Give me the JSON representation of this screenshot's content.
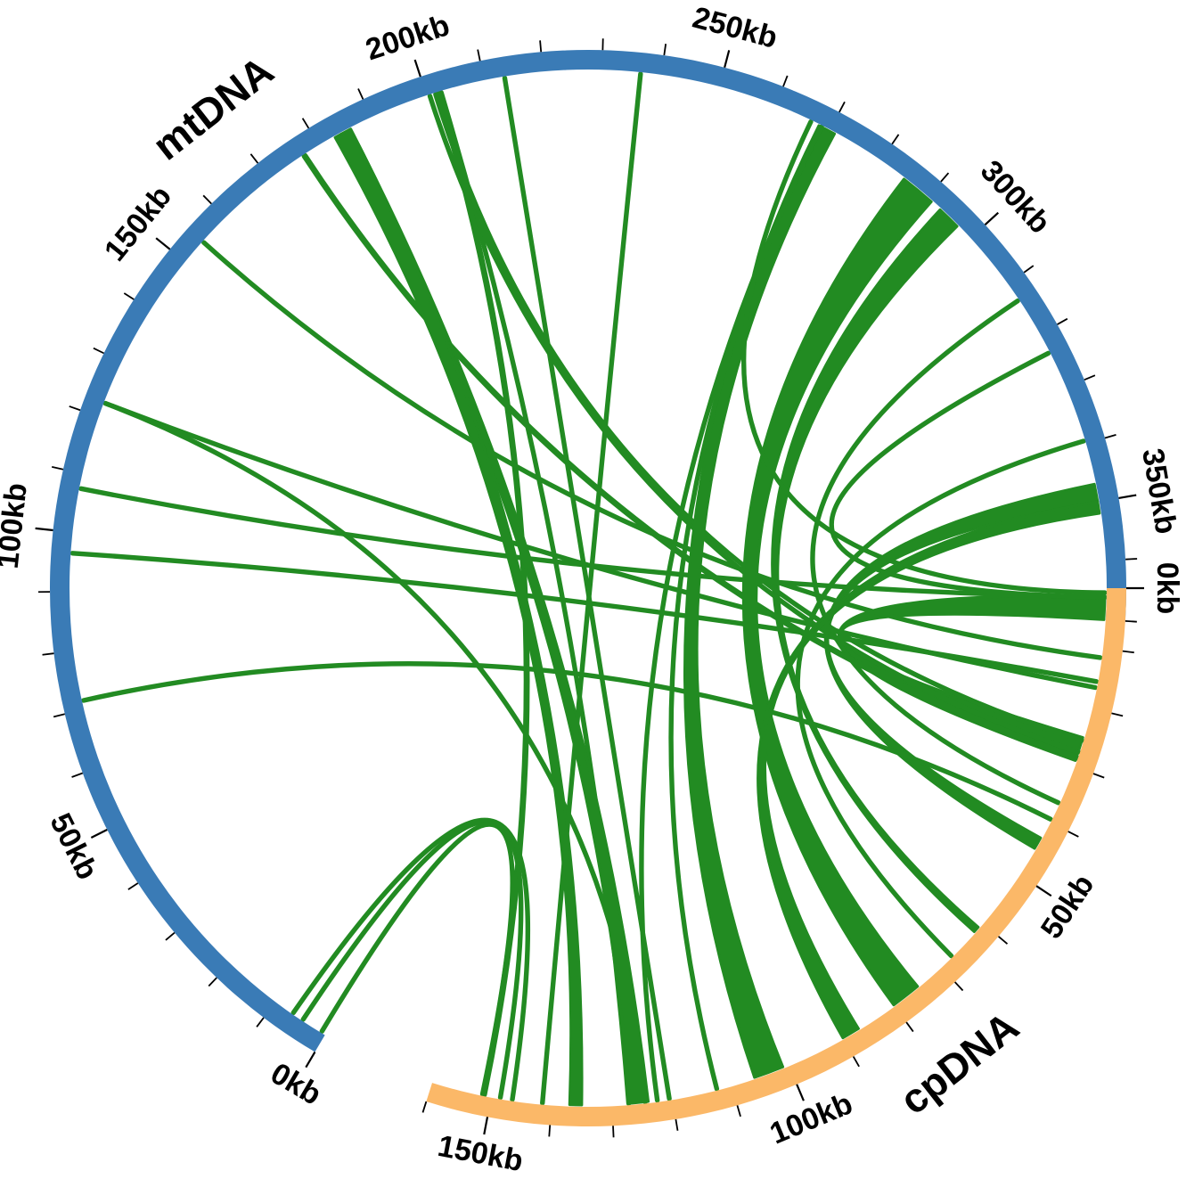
{
  "colors": {
    "mt": "#3a7bb6",
    "cp": "#fbb868",
    "link": "#228b22"
  },
  "sequences": [
    {
      "id": "mt",
      "name": "mtDNA",
      "length_kb": 370
    },
    {
      "id": "cp",
      "name": "cpDNA",
      "length_kb": 160
    }
  ],
  "ticks": {
    "mt": {
      "minor_every_kb": 10,
      "labels": [
        "0kb",
        "50kb",
        "100kb",
        "150kb",
        "200kb",
        "250kb",
        "300kb",
        "350kb"
      ],
      "label_values_kb": [
        0,
        50,
        100,
        150,
        200,
        250,
        300,
        350
      ]
    },
    "cp": {
      "minor_every_kb": 10,
      "labels": [
        "0kb",
        "50kb",
        "100kb",
        "150kb"
      ],
      "label_values_kb": [
        0,
        50,
        100,
        150
      ]
    }
  },
  "links": [
    {
      "mt": [
        366,
        370
      ],
      "cp": [
        25,
        29
      ]
    },
    {
      "mt": [
        347,
        350
      ],
      "cp": [
        43,
        45
      ]
    },
    {
      "mt": [
        313,
        313.5
      ],
      "cp": [
        36,
        37
      ]
    },
    {
      "mt": [
        293,
        297
      ],
      "cp": [
        61,
        62
      ]
    },
    {
      "mt": [
        176,
        178
      ],
      "cp": [
        28,
        29
      ]
    },
    {
      "mt": [
        202,
        203
      ],
      "cp": [
        127,
        127.5
      ]
    },
    {
      "mt": [
        200,
        201
      ],
      "cp": [
        27,
        28
      ]
    },
    {
      "mt": [
        201,
        202
      ],
      "cp": [
        25,
        26
      ]
    },
    {
      "mt": [
        213,
        214
      ],
      "cp": [
        120,
        121
      ]
    },
    {
      "mt": [
        201,
        203
      ],
      "cp": [
        151,
        151.5
      ]
    },
    {
      "mt": [
        154,
        155
      ],
      "cp": [
        11,
        12
      ]
    },
    {
      "mt": [
        122,
        123
      ],
      "cp": [
        16,
        17
      ]
    },
    {
      "mt": [
        122,
        123
      ],
      "cp": [
        124,
        125
      ]
    },
    {
      "mt": [
        107,
        108
      ],
      "cp": [
        1,
        2
      ]
    },
    {
      "mt": [
        96,
        97
      ],
      "cp": [
        15,
        16
      ]
    },
    {
      "mt": [
        71,
        72
      ],
      "cp": [
        39,
        40
      ]
    },
    {
      "mt": [
        4,
        5
      ],
      "cp": [
        148,
        149
      ]
    },
    {
      "mt": [
        0.5,
        1
      ],
      "cp": [
        151,
        152
      ]
    },
    {
      "mt": [
        6,
        7
      ],
      "cp": [
        146,
        147
      ]
    },
    {
      "mt": [
        184,
        186
      ],
      "cp": [
        124,
        127
      ]
    },
    {
      "mt": [
        183,
        186
      ],
      "cp": [
        135,
        137
      ]
    },
    {
      "mt": [
        236,
        237
      ],
      "cp": [
        141,
        142
      ]
    },
    {
      "mt": [
        268,
        271
      ],
      "cp": [
        101,
        106
      ]
    },
    {
      "mt": [
        285,
        291
      ],
      "cp": [
        75,
        80
      ]
    },
    {
      "mt": [
        339,
        340
      ],
      "cp": [
        67,
        68
      ]
    },
    {
      "mt": [
        268,
        269
      ],
      "cp": [
        122,
        123
      ]
    },
    {
      "mt": [
        268,
        269
      ],
      "cp": [
        112,
        113
      ]
    },
    {
      "mt": [
        323,
        324
      ],
      "cp": [
        1,
        2
      ]
    },
    {
      "mt": [
        266,
        267
      ],
      "cp": [
        0.5,
        1
      ]
    },
    {
      "mt": [
        350,
        352
      ],
      "cp": [
        87,
        90
      ]
    }
  ]
}
